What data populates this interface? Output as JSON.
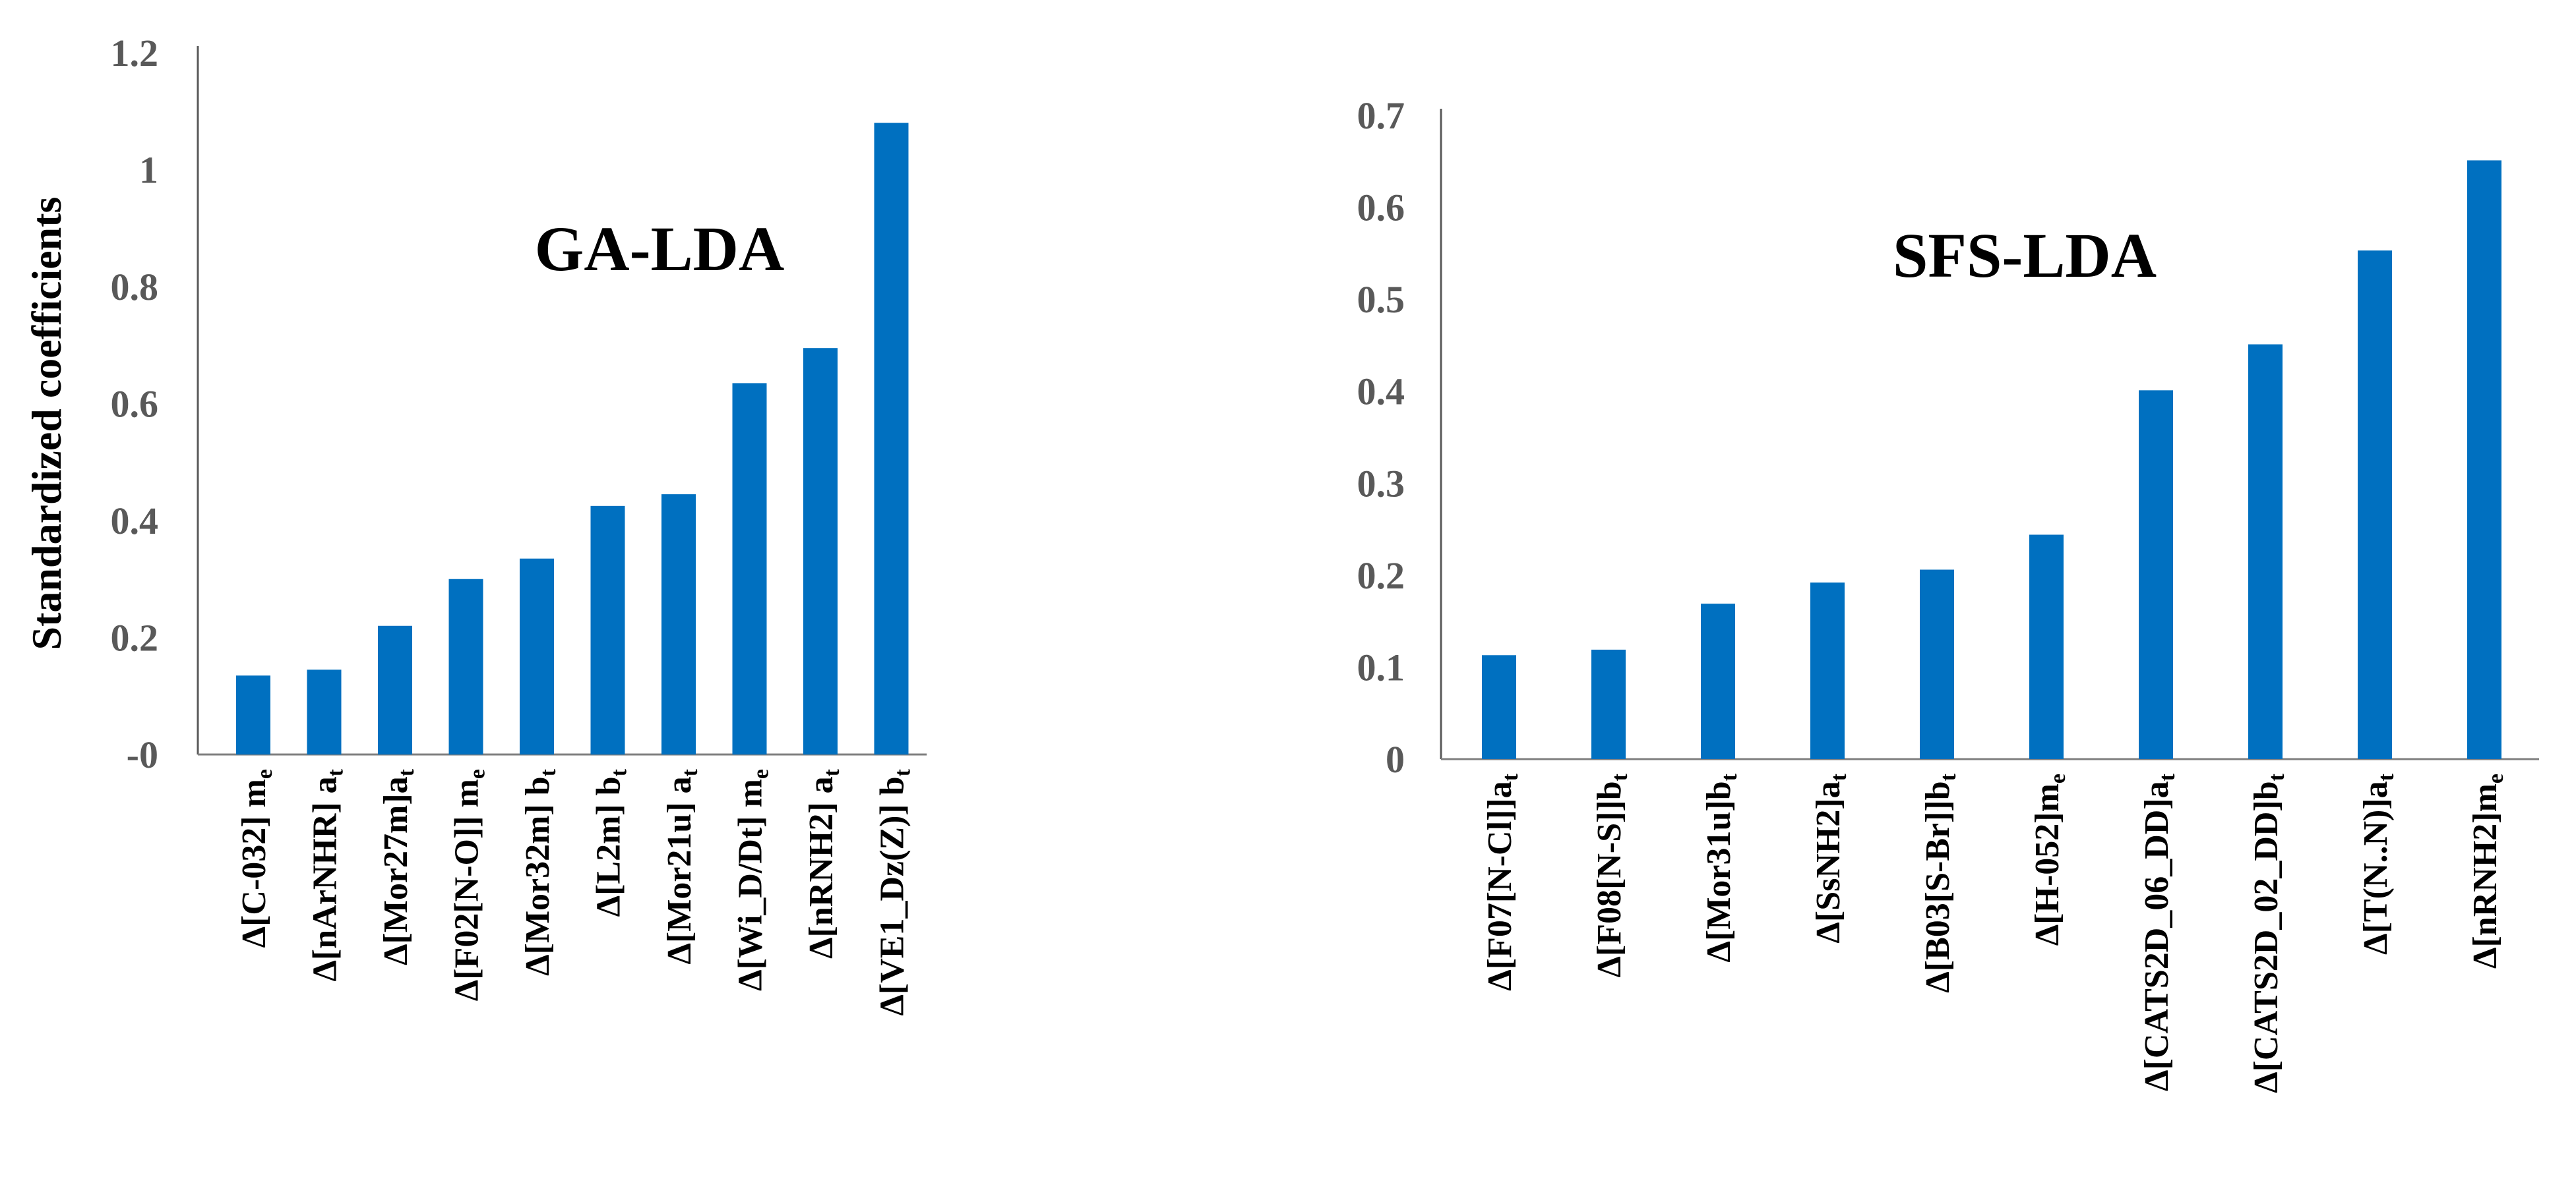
{
  "chart_data": [
    {
      "type": "bar",
      "title": "GA-LDA",
      "ylabel": "Standardized coefficients",
      "xlabel": "",
      "ylim": [
        0,
        1.2
      ],
      "yticks": [
        "-0",
        "0.2",
        "0.4",
        "0.6",
        "0.8",
        "1",
        "1.2"
      ],
      "color": "#0070C0",
      "grid": false,
      "categories": [
        {
          "label": "Δ[C-032] m",
          "sub": "e"
        },
        {
          "label": "Δ[nArNHR] a",
          "sub": "t"
        },
        {
          "label": "Δ[Mor27m]a",
          "sub": "t"
        },
        {
          "label": "Δ[F02[N-O]] m",
          "sub": "e"
        },
        {
          "label": "Δ[Mor32m] b",
          "sub": "t"
        },
        {
          "label": "Δ[L2m] b",
          "sub": "t"
        },
        {
          "label": "Δ[Mor21u] a",
          "sub": "t"
        },
        {
          "label": "Δ[Wi_D/Dt] m",
          "sub": "e"
        },
        {
          "label": "Δ[nRNH2] a",
          "sub": "t"
        },
        {
          "label": "Δ[VE1_Dz(Z)] b",
          "sub": "t"
        }
      ],
      "values": [
        0.135,
        0.145,
        0.22,
        0.3,
        0.335,
        0.425,
        0.445,
        0.635,
        0.695,
        1.08
      ]
    },
    {
      "type": "bar",
      "title": "SFS-LDA",
      "ylabel": "",
      "xlabel": "",
      "ylim": [
        0,
        0.7
      ],
      "yticks": [
        "0",
        "0.1",
        "0.2",
        "0.3",
        "0.4",
        "0.5",
        "0.6",
        "0.7"
      ],
      "color": "#0070C0",
      "grid": false,
      "categories": [
        {
          "label": "Δ[F07[N-Cl]]a",
          "sub": "t"
        },
        {
          "label": "Δ[F08[N-S]]b",
          "sub": "t"
        },
        {
          "label": "Δ[Mor31u]b",
          "sub": "t"
        },
        {
          "label": "Δ[SsNH2]a",
          "sub": "t"
        },
        {
          "label": "Δ[B03[S-Br]]b",
          "sub": "t"
        },
        {
          "label": "Δ[H-052]m",
          "sub": "e"
        },
        {
          "label": "Δ[CATS2D_06_DD]a",
          "sub": "t"
        },
        {
          "label": "Δ[CATS2D_02_DD]b",
          "sub": "t"
        },
        {
          "label": "Δ[T(N..N)]a",
          "sub": "t"
        },
        {
          "label": "Δ[nRNH2]m",
          "sub": "e"
        }
      ],
      "values": [
        0.113,
        0.119,
        0.169,
        0.192,
        0.206,
        0.244,
        0.401,
        0.451,
        0.553,
        0.651
      ]
    }
  ]
}
